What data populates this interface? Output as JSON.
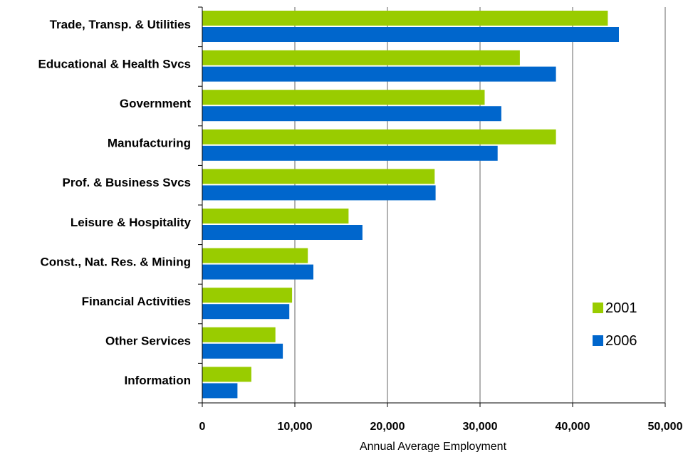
{
  "chart_data": {
    "type": "bar",
    "orientation": "horizontal",
    "categories": [
      "Trade, Transp. & Utilities",
      "Educational & Health Svcs",
      "Government",
      "Manufacturing",
      "Prof. & Business Svcs",
      "Leisure & Hospitality",
      "Const., Nat. Res. & Mining",
      "Financial Activities",
      "Other Services",
      "Information"
    ],
    "series": [
      {
        "name": "2001",
        "color": "#99cc00",
        "values": [
          43800,
          34300,
          30500,
          38200,
          25100,
          15800,
          11400,
          9700,
          7900,
          5300
        ]
      },
      {
        "name": "2006",
        "color": "#0066cc",
        "values": [
          45000,
          38200,
          32300,
          31900,
          25200,
          17300,
          12000,
          9400,
          8700,
          3800
        ]
      }
    ],
    "xlim": [
      0,
      50000
    ],
    "xticks": [
      "0",
      "10,000",
      "20,000",
      "30,000",
      "40,000",
      "50,000"
    ],
    "xlabel": "Annual Average Employment",
    "ylabel": "",
    "title": "",
    "grid": "vertical",
    "legend_position": "right"
  }
}
